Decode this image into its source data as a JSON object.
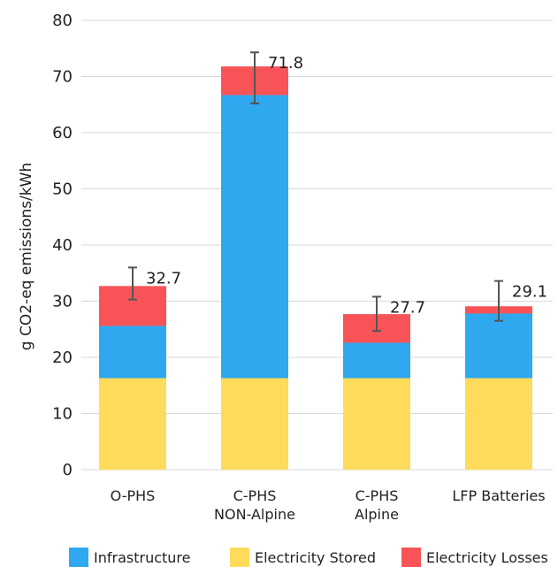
{
  "chart_data": {
    "type": "bar",
    "stacked": true,
    "title": "",
    "xlabel": "",
    "ylabel": "g CO2-eq emissions/kWh",
    "ylim": [
      0,
      80
    ],
    "yticks": [
      0,
      10,
      20,
      30,
      40,
      50,
      60,
      70,
      80
    ],
    "grid": true,
    "legend_position": "bottom",
    "categories": [
      [
        "O-PHS"
      ],
      [
        "C-PHS",
        "NON-Alpine"
      ],
      [
        "C-PHS",
        "Alpine"
      ],
      [
        "LFP Batteries"
      ]
    ],
    "series": [
      {
        "name": "Electricity Stored",
        "color": "#FFDB5C",
        "values": [
          16.3,
          16.3,
          16.3,
          16.3
        ]
      },
      {
        "name": "Infrastructure",
        "color": "#2FA8F0",
        "values": [
          9.3,
          50.4,
          6.3,
          11.5
        ]
      },
      {
        "name": "Electricity Losses",
        "color": "#F85458",
        "values": [
          7.1,
          5.1,
          5.1,
          1.3
        ]
      }
    ],
    "legend_order": [
      "Infrastructure",
      "Electricity Stored",
      "Electricity Losses"
    ],
    "totals": [
      32.7,
      71.8,
      27.7,
      29.1
    ],
    "total_labels": [
      "32.7",
      "71.8",
      "27.7",
      "29.1"
    ],
    "error_bars": [
      {
        "low": 30.3,
        "high": 36.0
      },
      {
        "low": 65.2,
        "high": 74.3
      },
      {
        "low": 24.7,
        "high": 30.8
      },
      {
        "low": 26.5,
        "high": 33.6
      }
    ],
    "colors": {
      "grid": "#D9D9D9",
      "error_bar": "#555555"
    }
  }
}
